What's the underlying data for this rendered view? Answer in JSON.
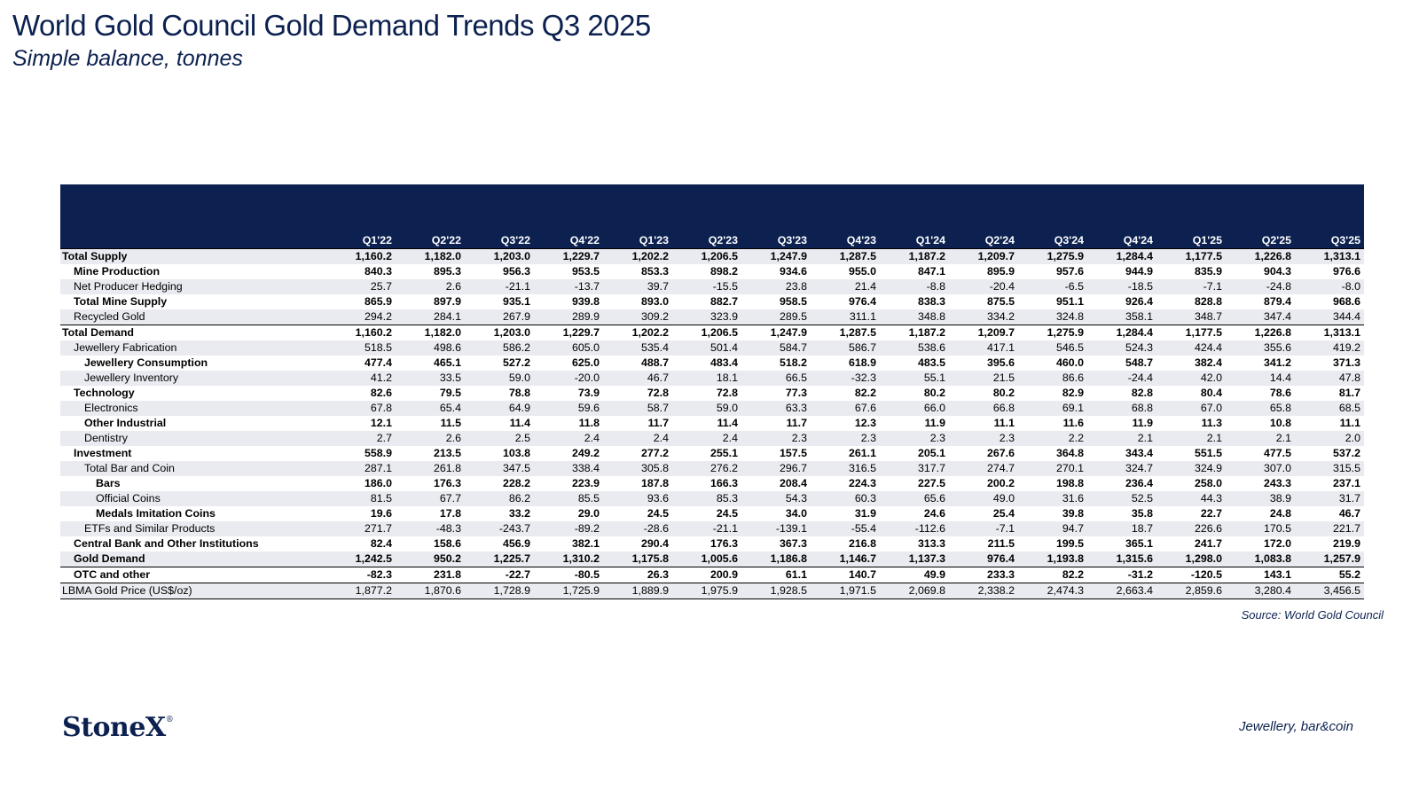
{
  "title": "World Gold Council Gold Demand Trends Q3 2025",
  "subtitle": "Simple balance, tonnes",
  "table": {
    "columns": [
      "Q1'22",
      "Q2'22",
      "Q3'22",
      "Q4'22",
      "Q1'23",
      "Q2'23",
      "Q3'23",
      "Q4'23",
      "Q1'24",
      "Q2'24",
      "Q3'24",
      "Q4'24",
      "Q1'25",
      "Q2'25",
      "Q3'25"
    ],
    "rows": [
      {
        "label": "Total Supply",
        "level": 0,
        "bold": true,
        "shade": true,
        "values": [
          "1,160.2",
          "1,182.0",
          "1,203.0",
          "1,229.7",
          "1,202.2",
          "1,206.5",
          "1,247.9",
          "1,287.5",
          "1,187.2",
          "1,209.7",
          "1,275.9",
          "1,284.4",
          "1,177.5",
          "1,226.8",
          "1,313.1"
        ]
      },
      {
        "label": "Mine Production",
        "level": 1,
        "bold": true,
        "shade": false,
        "values": [
          "840.3",
          "895.3",
          "956.3",
          "953.5",
          "853.3",
          "898.2",
          "934.6",
          "955.0",
          "847.1",
          "895.9",
          "957.6",
          "944.9",
          "835.9",
          "904.3",
          "976.6"
        ]
      },
      {
        "label": "Net Producer Hedging",
        "level": 1,
        "bold": false,
        "shade": true,
        "values": [
          "25.7",
          "2.6",
          "-21.1",
          "-13.7",
          "39.7",
          "-15.5",
          "23.8",
          "21.4",
          "-8.8",
          "-20.4",
          "-6.5",
          "-18.5",
          "-7.1",
          "-24.8",
          "-8.0"
        ]
      },
      {
        "label": "Total Mine Supply",
        "level": 1,
        "bold": true,
        "shade": false,
        "values": [
          "865.9",
          "897.9",
          "935.1",
          "939.8",
          "893.0",
          "882.7",
          "958.5",
          "976.4",
          "838.3",
          "875.5",
          "951.1",
          "926.4",
          "828.8",
          "879.4",
          "968.6"
        ]
      },
      {
        "label": "Recycled Gold",
        "level": 1,
        "bold": false,
        "shade": true,
        "values": [
          "294.2",
          "284.1",
          "267.9",
          "289.9",
          "309.2",
          "323.9",
          "289.5",
          "311.1",
          "348.8",
          "334.2",
          "324.8",
          "358.1",
          "348.7",
          "347.4",
          "344.4"
        ]
      },
      {
        "label": "Total Demand",
        "level": 0,
        "bold": true,
        "shade": false,
        "rule": true,
        "values": [
          "1,160.2",
          "1,182.0",
          "1,203.0",
          "1,229.7",
          "1,202.2",
          "1,206.5",
          "1,247.9",
          "1,287.5",
          "1,187.2",
          "1,209.7",
          "1,275.9",
          "1,284.4",
          "1,177.5",
          "1,226.8",
          "1,313.1"
        ]
      },
      {
        "label": "Jewellery Fabrication",
        "level": 1,
        "bold": false,
        "shade": true,
        "values": [
          "518.5",
          "498.6",
          "586.2",
          "605.0",
          "535.4",
          "501.4",
          "584.7",
          "586.7",
          "538.6",
          "417.1",
          "546.5",
          "524.3",
          "424.4",
          "355.6",
          "419.2"
        ]
      },
      {
        "label": "Jewellery Consumption",
        "level": 2,
        "bold": true,
        "shade": false,
        "values": [
          "477.4",
          "465.1",
          "527.2",
          "625.0",
          "488.7",
          "483.4",
          "518.2",
          "618.9",
          "483.5",
          "395.6",
          "460.0",
          "548.7",
          "382.4",
          "341.2",
          "371.3"
        ]
      },
      {
        "label": "Jewellery Inventory",
        "level": 2,
        "bold": false,
        "shade": true,
        "values": [
          "41.2",
          "33.5",
          "59.0",
          "-20.0",
          "46.7",
          "18.1",
          "66.5",
          "-32.3",
          "55.1",
          "21.5",
          "86.6",
          "-24.4",
          "42.0",
          "14.4",
          "47.8"
        ]
      },
      {
        "label": "Technology",
        "level": 1,
        "bold": true,
        "shade": false,
        "values": [
          "82.6",
          "79.5",
          "78.8",
          "73.9",
          "72.8",
          "72.8",
          "77.3",
          "82.2",
          "80.2",
          "80.2",
          "82.9",
          "82.8",
          "80.4",
          "78.6",
          "81.7"
        ]
      },
      {
        "label": "Electronics",
        "level": 2,
        "bold": false,
        "shade": true,
        "values": [
          "67.8",
          "65.4",
          "64.9",
          "59.6",
          "58.7",
          "59.0",
          "63.3",
          "67.6",
          "66.0",
          "66.8",
          "69.1",
          "68.8",
          "67.0",
          "65.8",
          "68.5"
        ]
      },
      {
        "label": "Other Industrial",
        "level": 2,
        "bold": true,
        "shade": false,
        "values": [
          "12.1",
          "11.5",
          "11.4",
          "11.8",
          "11.7",
          "11.4",
          "11.7",
          "12.3",
          "11.9",
          "11.1",
          "11.6",
          "11.9",
          "11.3",
          "10.8",
          "11.1"
        ]
      },
      {
        "label": "Dentistry",
        "level": 2,
        "bold": false,
        "shade": true,
        "values": [
          "2.7",
          "2.6",
          "2.5",
          "2.4",
          "2.4",
          "2.4",
          "2.3",
          "2.3",
          "2.3",
          "2.3",
          "2.2",
          "2.1",
          "2.1",
          "2.1",
          "2.0"
        ]
      },
      {
        "label": "Investment",
        "level": 1,
        "bold": true,
        "shade": false,
        "values": [
          "558.9",
          "213.5",
          "103.8",
          "249.2",
          "277.2",
          "255.1",
          "157.5",
          "261.1",
          "205.1",
          "267.6",
          "364.8",
          "343.4",
          "551.5",
          "477.5",
          "537.2"
        ]
      },
      {
        "label": "Total Bar and Coin",
        "level": 2,
        "bold": false,
        "shade": true,
        "values": [
          "287.1",
          "261.8",
          "347.5",
          "338.4",
          "305.8",
          "276.2",
          "296.7",
          "316.5",
          "317.7",
          "274.7",
          "270.1",
          "324.7",
          "324.9",
          "307.0",
          "315.5"
        ]
      },
      {
        "label": "Bars",
        "level": 3,
        "bold": true,
        "shade": false,
        "values": [
          "186.0",
          "176.3",
          "228.2",
          "223.9",
          "187.8",
          "166.3",
          "208.4",
          "224.3",
          "227.5",
          "200.2",
          "198.8",
          "236.4",
          "258.0",
          "243.3",
          "237.1"
        ]
      },
      {
        "label": "Official Coins",
        "level": 3,
        "bold": false,
        "shade": true,
        "values": [
          "81.5",
          "67.7",
          "86.2",
          "85.5",
          "93.6",
          "85.3",
          "54.3",
          "60.3",
          "65.6",
          "49.0",
          "31.6",
          "52.5",
          "44.3",
          "38.9",
          "31.7"
        ]
      },
      {
        "label": "Medals Imitation Coins",
        "level": 3,
        "bold": true,
        "shade": false,
        "values": [
          "19.6",
          "17.8",
          "33.2",
          "29.0",
          "24.5",
          "24.5",
          "34.0",
          "31.9",
          "24.6",
          "25.4",
          "39.8",
          "35.8",
          "22.7",
          "24.8",
          "46.7"
        ]
      },
      {
        "label": "ETFs and Similar Products",
        "level": 2,
        "bold": false,
        "shade": true,
        "values": [
          "271.7",
          "-48.3",
          "-243.7",
          "-89.2",
          "-28.6",
          "-21.1",
          "-139.1",
          "-55.4",
          "-112.6",
          "-7.1",
          "94.7",
          "18.7",
          "226.6",
          "170.5",
          "221.7"
        ]
      },
      {
        "label": "Central Bank and Other Institutions",
        "level": 1,
        "bold": true,
        "shade": false,
        "values": [
          "82.4",
          "158.6",
          "456.9",
          "382.1",
          "290.4",
          "176.3",
          "367.3",
          "216.8",
          "313.3",
          "211.5",
          "199.5",
          "365.1",
          "241.7",
          "172.0",
          "219.9"
        ]
      },
      {
        "label": "Gold Demand",
        "level": 1,
        "bold": true,
        "shade": true,
        "values": [
          "1,242.5",
          "950.2",
          "1,225.7",
          "1,310.2",
          "1,175.8",
          "1,005.6",
          "1,186.8",
          "1,146.7",
          "1,137.3",
          "976.4",
          "1,193.8",
          "1,315.6",
          "1,298.0",
          "1,083.8",
          "1,257.9"
        ]
      },
      {
        "label": "OTC and other",
        "level": 1,
        "bold": true,
        "shade": false,
        "values": [
          "-82.3",
          "231.8",
          "-22.7",
          "-80.5",
          "26.3",
          "200.9",
          "61.1",
          "140.7",
          "49.9",
          "233.3",
          "82.2",
          "-31.2",
          "-120.5",
          "143.1",
          "55.2"
        ]
      },
      {
        "label": "LBMA Gold Price (US$/oz)",
        "level": 0,
        "bold": false,
        "shade": true,
        "last": true,
        "values": [
          "1,877.2",
          "1,870.6",
          "1,728.9",
          "1,725.9",
          "1,889.9",
          "1,975.9",
          "1,928.5",
          "1,971.5",
          "2,069.8",
          "2,338.2",
          "2,474.3",
          "2,663.4",
          "2,859.6",
          "3,280.4",
          "3,456.5"
        ]
      }
    ]
  },
  "source": "Source: World Gold Council",
  "logo_text": "StoneX",
  "logo_mark": "®",
  "footer_note": "Jewellery, bar&coin",
  "colors": {
    "navy": "#0c2150",
    "row_shade": "#e9ebf0"
  }
}
